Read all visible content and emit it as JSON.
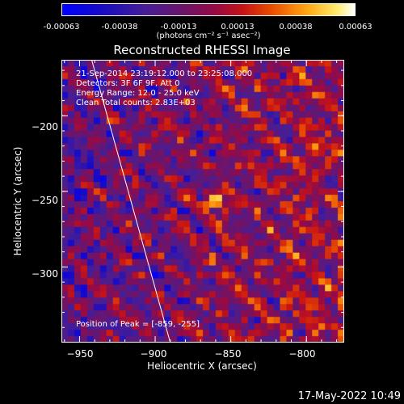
{
  "colorbar": {
    "ticks": [
      "-0.00063",
      "-0.00038",
      "-0.00013",
      "0.00013",
      "0.00038",
      "0.00063"
    ],
    "unit": "(photons cm⁻² s⁻¹ asec⁻²)",
    "range": [
      -0.00063,
      0.00063
    ]
  },
  "chart_data": {
    "type": "heatmap",
    "title": "Reconstructed RHESSI Image",
    "xlabel": "Heliocentric X (arcsec)",
    "ylabel": "Heliocentric Y (arcsec)",
    "xlim": [
      -962,
      -775
    ],
    "ylim": [
      -350,
      -163
    ],
    "xticks": [
      -950,
      -900,
      -850,
      -800
    ],
    "yticks": [
      -200,
      -250,
      -300
    ],
    "xtick_labels": [
      "−950",
      "−900",
      "−850",
      "−800"
    ],
    "ytick_labels": [
      "−200",
      "−250",
      "−300"
    ],
    "annotations": [
      "21-Sep-2014 23:19:12.000 to 23:25:08.000",
      "Detectors: 3F 6F 9F, Att 0",
      "Energy Range: 12.0 - 25.0 keV",
      "Clean     Total counts: 2.83E+03"
    ],
    "peak_label": "Position of Peak = [-859, -255]",
    "peak": [
      -859,
      -255
    ],
    "limb_line": [
      [
        -942,
        -163
      ],
      [
        -890,
        -350
      ]
    ]
  },
  "footer": {
    "timestamp": "17-May-2022 10:49"
  },
  "colors": {
    "background": "#000000",
    "text": "#ffffff",
    "limb": "#ffffff"
  }
}
